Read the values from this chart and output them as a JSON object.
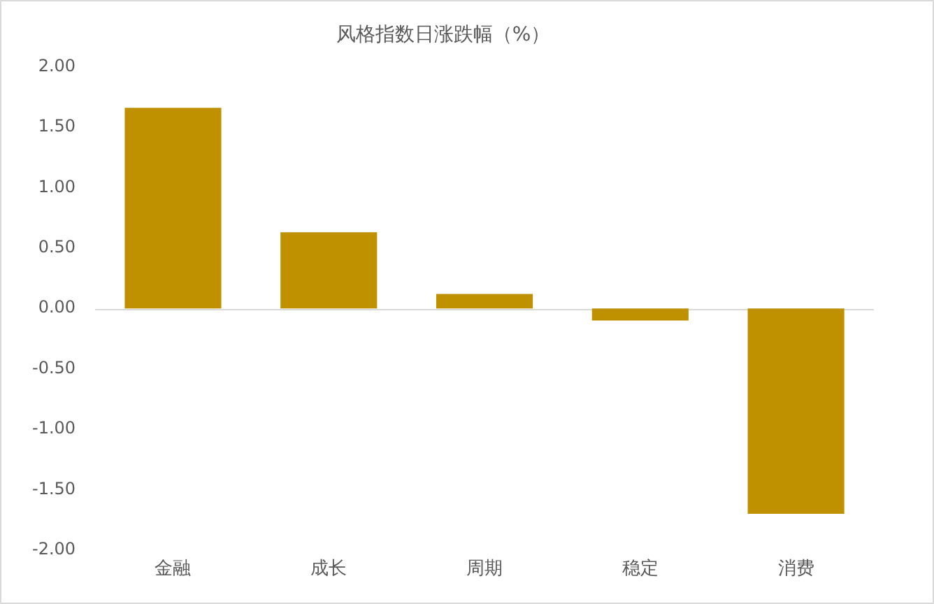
{
  "chart_data": {
    "type": "bar",
    "title": "风格指数日涨跌幅（%）",
    "categories": [
      "金融",
      "成长",
      "周期",
      "稳定",
      "消费"
    ],
    "values": [
      1.66,
      0.63,
      0.12,
      -0.1,
      -1.7
    ],
    "color": "#bf9000",
    "ylim": [
      -2,
      2
    ],
    "yticks": [
      {
        "value": -2,
        "label": "-2.00"
      },
      {
        "value": -1.5,
        "label": "-1.50"
      },
      {
        "value": -1,
        "label": "-1.00"
      },
      {
        "value": -0.5,
        "label": "-0.50"
      },
      {
        "value": 0,
        "label": "0.00"
      },
      {
        "value": 0.5,
        "label": "0.50"
      },
      {
        "value": 1,
        "label": "1.00"
      },
      {
        "value": 1.5,
        "label": "1.50"
      },
      {
        "value": 2,
        "label": "2.00"
      }
    ],
    "ref_lines": [
      {
        "axis": "y",
        "value": 0,
        "color": "#d9d9d9"
      }
    ],
    "grid": false,
    "legend": false
  }
}
